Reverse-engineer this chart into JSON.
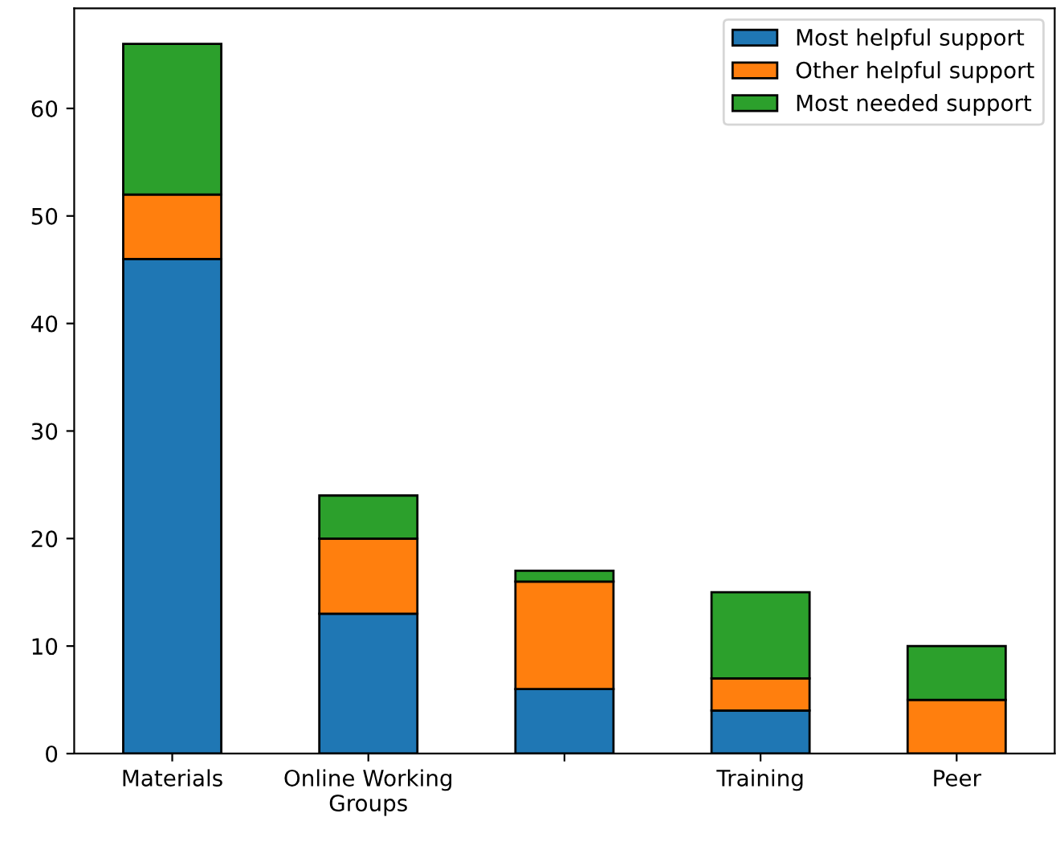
{
  "chart_data": {
    "type": "bar",
    "stacked": true,
    "categories": [
      "Materials",
      "Online Working\nGroups",
      null,
      "Training",
      "Peer"
    ],
    "series": [
      {
        "name": "Most helpful support",
        "color": "#1f77b4",
        "values": [
          46,
          13,
          6,
          4,
          0
        ]
      },
      {
        "name": "Other helpful support",
        "color": "#ff7f0e",
        "values": [
          6,
          7,
          10,
          3,
          5
        ]
      },
      {
        "name": "Most needed support",
        "color": "#2ca02c",
        "values": [
          14,
          4,
          1,
          8,
          5
        ]
      }
    ],
    "ylim": [
      0,
      69.3
    ],
    "yticks": [
      0,
      10,
      20,
      30,
      40,
      50,
      60
    ],
    "grid": false,
    "legend": "top right"
  }
}
